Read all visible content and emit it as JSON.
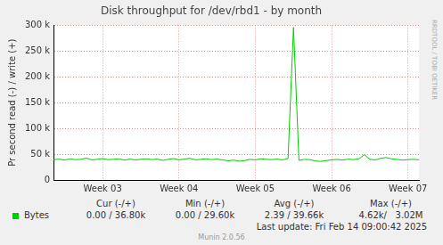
{
  "chart_data": {
    "type": "line",
    "title": "Disk throughput for /dev/rbd1 - by month",
    "y_label": "Pr second read (-) / write (+)",
    "categories": [
      null,
      null,
      null,
      null,
      null,
      null,
      null,
      null,
      null,
      "Week 03",
      null,
      null,
      null,
      null,
      null,
      null,
      null,
      null,
      null,
      null,
      null,
      null,
      null,
      "Week 04",
      null,
      null,
      null,
      null,
      null,
      null,
      null,
      null,
      null,
      null,
      null,
      null,
      null,
      "Week 05",
      null,
      null,
      null,
      null,
      null,
      null,
      null,
      null,
      null,
      null,
      null,
      null,
      null,
      "Week 06",
      null,
      null,
      null,
      null,
      null,
      null,
      null,
      null,
      null,
      null,
      null,
      null,
      null,
      "Week 07",
      null,
      null
    ],
    "series": [
      {
        "name": "Bytes",
        "color": "#00cc00",
        "values": [
          39000,
          40500,
          38500,
          41000,
          39500,
          40000,
          42500,
          39000,
          40000,
          41500,
          39500,
          40000,
          41000,
          38500,
          40500,
          39000,
          40000,
          41000,
          39500,
          40500,
          38000,
          40000,
          41500,
          39000,
          40500,
          42000,
          39000,
          40000,
          41000,
          39500,
          40500,
          39000,
          37000,
          38500,
          36500,
          37500,
          40000,
          39000,
          41000,
          40000,
          39500,
          40500,
          39000,
          41500,
          296000,
          38000,
          40000,
          39500,
          37000,
          36000,
          37500,
          39000,
          40000,
          38500,
          40500,
          39500,
          41000,
          49000,
          40000,
          39000,
          42000,
          43500,
          41000,
          40000,
          38500,
          39500,
          40000,
          39000
        ]
      }
    ],
    "ylim": [
      0,
      300000
    ],
    "yticks": [
      0,
      {
        "value": 50000,
        "label": "50 k"
      },
      {
        "value": 100000,
        "label": "100 k"
      },
      {
        "value": 150000,
        "label": "150 k"
      },
      {
        "value": 200000,
        "label": "200 k"
      },
      {
        "value": 250000,
        "label": "250 k"
      },
      {
        "value": 300000,
        "label": "300 k"
      }
    ],
    "grid": true,
    "legend_table": {
      "columns": [
        "Cur (-/+)",
        "Min (-/+)",
        "Avg (-/+)",
        "Max (-/+)"
      ],
      "rows": [
        {
          "name": "Bytes",
          "values": [
            "0.00 / 36.80k",
            "0.00 / 29.60k",
            "2.39 / 39.66k",
            "4.62k/   3.02M"
          ]
        }
      ]
    },
    "last_update": "Last update: Fri Feb 14 09:00:42 2025",
    "footer": "Munin 2.0.56",
    "side_text": "RRDTOOL / TOBI OETIKER"
  }
}
